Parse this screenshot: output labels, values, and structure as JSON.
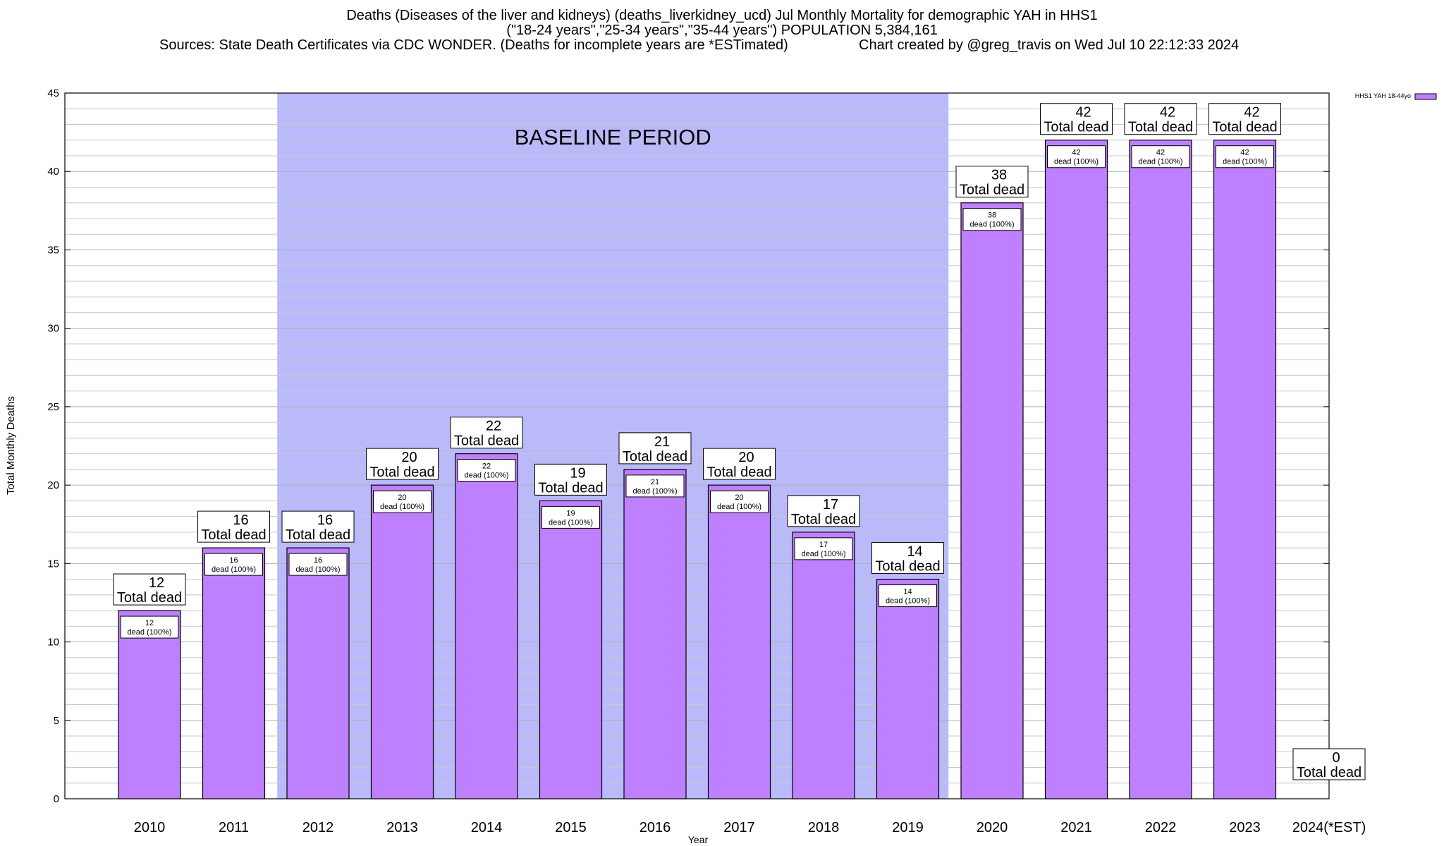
{
  "title": {
    "line1": "Deaths (Diseases of the liver and kidneys) (deaths_liverkidney_ucd) Jul Monthly Mortality for demographic YAH in HHS1",
    "line2": "(\"18-24 years\",\"25-34 years\",\"35-44 years\") POPULATION 5,384,161",
    "line3_source": "Sources: State Death Certificates via CDC WONDER. (Deaths for incomplete years are *ESTimated)",
    "line3_created": "Chart created by @greg_travis on Wed Jul 10 22:12:33 2024"
  },
  "chart_data": {
    "type": "bar",
    "xlabel": "Year",
    "ylabel": "Total Monthly Deaths",
    "ylim": [
      0,
      45
    ],
    "y_ticks": [
      0,
      5,
      10,
      15,
      20,
      25,
      30,
      35,
      40,
      45
    ],
    "categories": [
      "2010",
      "2011",
      "2012",
      "2013",
      "2014",
      "2015",
      "2016",
      "2017",
      "2018",
      "2019",
      "2020",
      "2021",
      "2022",
      "2023",
      "2024(*EST)"
    ],
    "series": [
      {
        "name": "HHS1 YAH 18-44yo",
        "values": [
          12,
          16,
          16,
          20,
          22,
          19,
          21,
          20,
          17,
          14,
          38,
          42,
          42,
          42,
          0
        ]
      }
    ],
    "total_label_suffix": "Total dead",
    "inner_label_suffix": "dead (100%)",
    "baseline": {
      "label": "BASELINE PERIOD",
      "start": "2012",
      "end": "2019"
    },
    "legend_position": "top-right",
    "grid": true,
    "colors": {
      "bar": "#bf80ff",
      "baseline": "#babafa",
      "grid": "#c8c8c8"
    }
  }
}
